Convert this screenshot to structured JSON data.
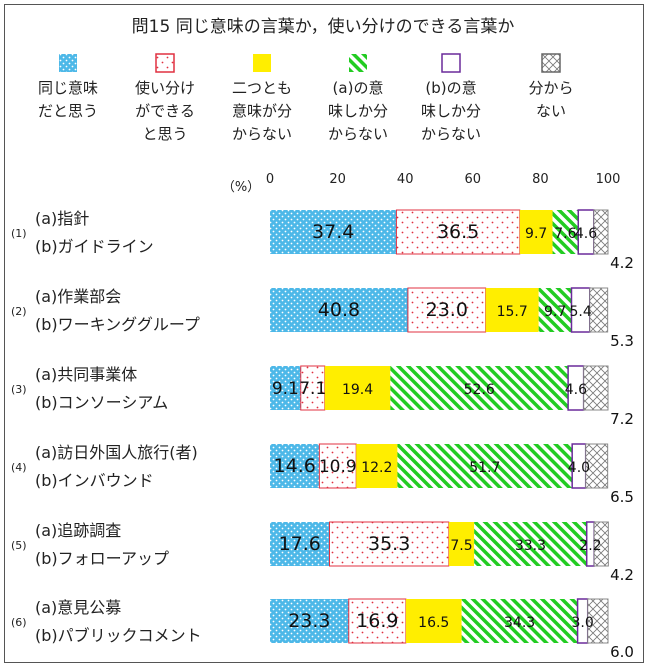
{
  "chart_data": {
    "type": "bar",
    "orientation": "horizontal",
    "stacked": true,
    "title": "問15 同じ意味の言葉か，使い分けのできる言葉か",
    "axis_unit": "（%）",
    "xlim": [
      0,
      100
    ],
    "x_ticks": [
      "0",
      "20",
      "40",
      "60",
      "80",
      "100"
    ],
    "grid": false,
    "legend_position": "top",
    "categories": [
      {
        "num": "(1)",
        "a": "(a)指針",
        "b": "(b)ガイドライン"
      },
      {
        "num": "(2)",
        "a": "(a)作業部会",
        "b": "(b)ワーキンググループ"
      },
      {
        "num": "(3)",
        "a": "(a)共同事業体",
        "b": "(b)コンソーシアム"
      },
      {
        "num": "(4)",
        "a": "(a)訪日外国人旅行(者)",
        "b": "(b)インバウンド"
      },
      {
        "num": "(5)",
        "a": "(a)追跡調査",
        "b": "(b)フォローアップ"
      },
      {
        "num": "(6)",
        "a": "(a)意見公募",
        "b": "(b)パブリックコメント"
      }
    ],
    "series": [
      {
        "name": [
          "同じ意味",
          "だと思う"
        ],
        "color": "#4db8e8",
        "pattern": "dots-blue",
        "values": [
          37.4,
          40.8,
          9.1,
          14.6,
          17.6,
          23.3
        ],
        "labels": [
          "37.4",
          "40.8",
          "9.1",
          "14.6",
          "17.6",
          "23.3"
        ]
      },
      {
        "name": [
          "使い分け",
          "ができる",
          "と思う"
        ],
        "color": "#e04050",
        "pattern": "dots-red",
        "values": [
          36.5,
          23.0,
          7.1,
          10.9,
          35.3,
          16.9
        ],
        "labels": [
          "36.5",
          "23.0",
          "7.1",
          "10.9",
          "35.3",
          "16.9"
        ]
      },
      {
        "name": [
          "二つとも",
          "意味が分",
          "からない"
        ],
        "color": "#ffee00",
        "pattern": "solid-yellow",
        "values": [
          9.7,
          15.7,
          19.4,
          12.2,
          7.5,
          16.5
        ],
        "labels": [
          "9.7",
          "15.7",
          "19.4",
          "12.2",
          "7.5",
          "16.5"
        ]
      },
      {
        "name": [
          "(a)の意",
          "味しか分",
          "からない"
        ],
        "color": "#33cc33",
        "pattern": "stripes-green",
        "values": [
          7.6,
          9.7,
          52.6,
          51.7,
          33.3,
          34.3
        ],
        "labels": [
          "7.6",
          "9.7",
          "52.6",
          "51.7",
          "33.3",
          "34.3"
        ]
      },
      {
        "name": [
          "(b)の意",
          "味しか分",
          "からない"
        ],
        "color": "#6a2a9a",
        "pattern": "solid-white",
        "values": [
          4.6,
          5.4,
          4.6,
          4.0,
          2.2,
          3.0
        ],
        "labels": [
          "4.6",
          "5.4",
          "4.6",
          "4.0",
          "2.2",
          "3.0"
        ]
      },
      {
        "name": [
          "分から",
          "ない"
        ],
        "color": "#888888",
        "pattern": "cross-gray",
        "values": [
          4.2,
          5.3,
          7.2,
          6.5,
          4.2,
          6.0
        ],
        "labels": [
          "4.2",
          "5.3",
          "7.2",
          "6.5",
          "4.2",
          "6.0"
        ]
      }
    ]
  }
}
